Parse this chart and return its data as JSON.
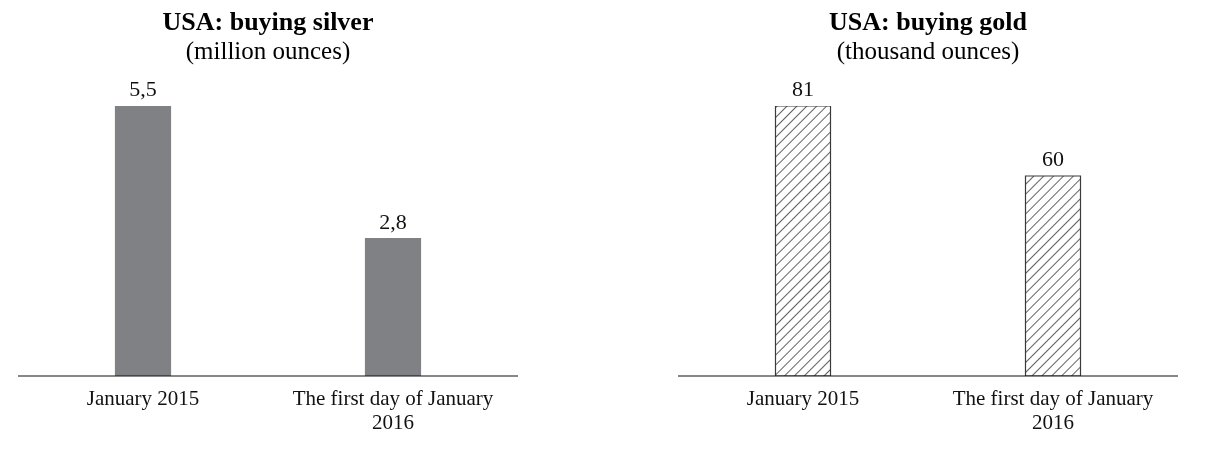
{
  "chart_data": [
    {
      "type": "bar",
      "title": "USA: buying silver",
      "subtitle": "(million ounces)",
      "categories": [
        "January 2015",
        "The first day of January 2016"
      ],
      "values": [
        5.5,
        2.8
      ],
      "value_labels": [
        "5,5",
        "2,8"
      ],
      "color": "#808184",
      "grid": false,
      "legend": false
    },
    {
      "type": "bar",
      "title": "USA: buying gold",
      "subtitle": "(thousand ounces)",
      "categories": [
        "January 2015",
        "The first day of January 2016"
      ],
      "values": [
        81,
        60
      ],
      "data_labels": true,
      "color": "#3a3a3a",
      "grid": false,
      "legend": false
    }
  ]
}
